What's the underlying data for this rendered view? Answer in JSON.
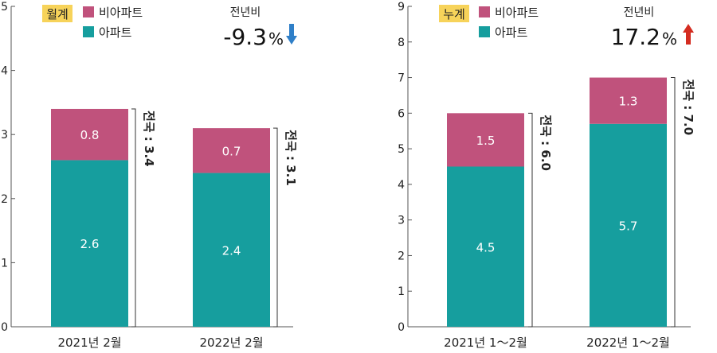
{
  "colors": {
    "apartment": "#169E9E",
    "non_apartment": "#C0527C",
    "tag_bg": "#F7D35A",
    "axis": "#555555",
    "down_arrow": "#2F7FC8",
    "up_arrow": "#D42C20",
    "bracket": "#333333",
    "text": "#222222",
    "bar_label": "#ffffff"
  },
  "chart_data": [
    {
      "type": "bar",
      "stacked": true,
      "tag": "월계",
      "categories": [
        "2021년 2월",
        "2022년 2월"
      ],
      "series": [
        {
          "name": "아파트",
          "color_key": "apartment",
          "values": [
            2.6,
            2.4
          ],
          "labels": [
            "2.6",
            "2.4"
          ]
        },
        {
          "name": "비아파트",
          "color_key": "non_apartment",
          "values": [
            0.8,
            0.7
          ],
          "labels": [
            "0.8",
            "0.7"
          ]
        }
      ],
      "totals": [
        3.4,
        3.1
      ],
      "total_labels": [
        "전국 : 3.4",
        "전국 : 3.1"
      ],
      "ylim": [
        0,
        5
      ],
      "yticks": [
        0,
        1,
        2,
        3,
        4,
        5
      ],
      "ytick_labels": [
        "0",
        "1",
        "2",
        "3",
        "4",
        "5"
      ],
      "yoy_label": "전년비",
      "yoy_value": "-9.3",
      "yoy_unit": "%",
      "yoy_direction": "down",
      "legend": "top-left"
    },
    {
      "type": "bar",
      "stacked": true,
      "tag": "누계",
      "categories": [
        "2021년 1～2월",
        "2022년 1～2월"
      ],
      "series": [
        {
          "name": "아파트",
          "color_key": "apartment",
          "values": [
            4.5,
            5.7
          ],
          "labels": [
            "4.5",
            "5.7"
          ]
        },
        {
          "name": "비아파트",
          "color_key": "non_apartment",
          "values": [
            1.5,
            1.3
          ],
          "labels": [
            "1.5",
            "1.3"
          ]
        }
      ],
      "totals": [
        6.0,
        7.0
      ],
      "total_labels": [
        "전국 : 6.0",
        "전국 : 7.0"
      ],
      "ylim": [
        0,
        9
      ],
      "yticks": [
        0,
        1,
        2,
        3,
        4,
        5,
        6,
        7,
        8,
        9
      ],
      "ytick_labels": [
        "0",
        "1",
        "2",
        "3",
        "4",
        "5",
        "6",
        "7",
        "8",
        "9"
      ],
      "yoy_label": "전년비",
      "yoy_value": "17.2",
      "yoy_unit": "%",
      "yoy_direction": "up",
      "legend": "top-left"
    }
  ]
}
